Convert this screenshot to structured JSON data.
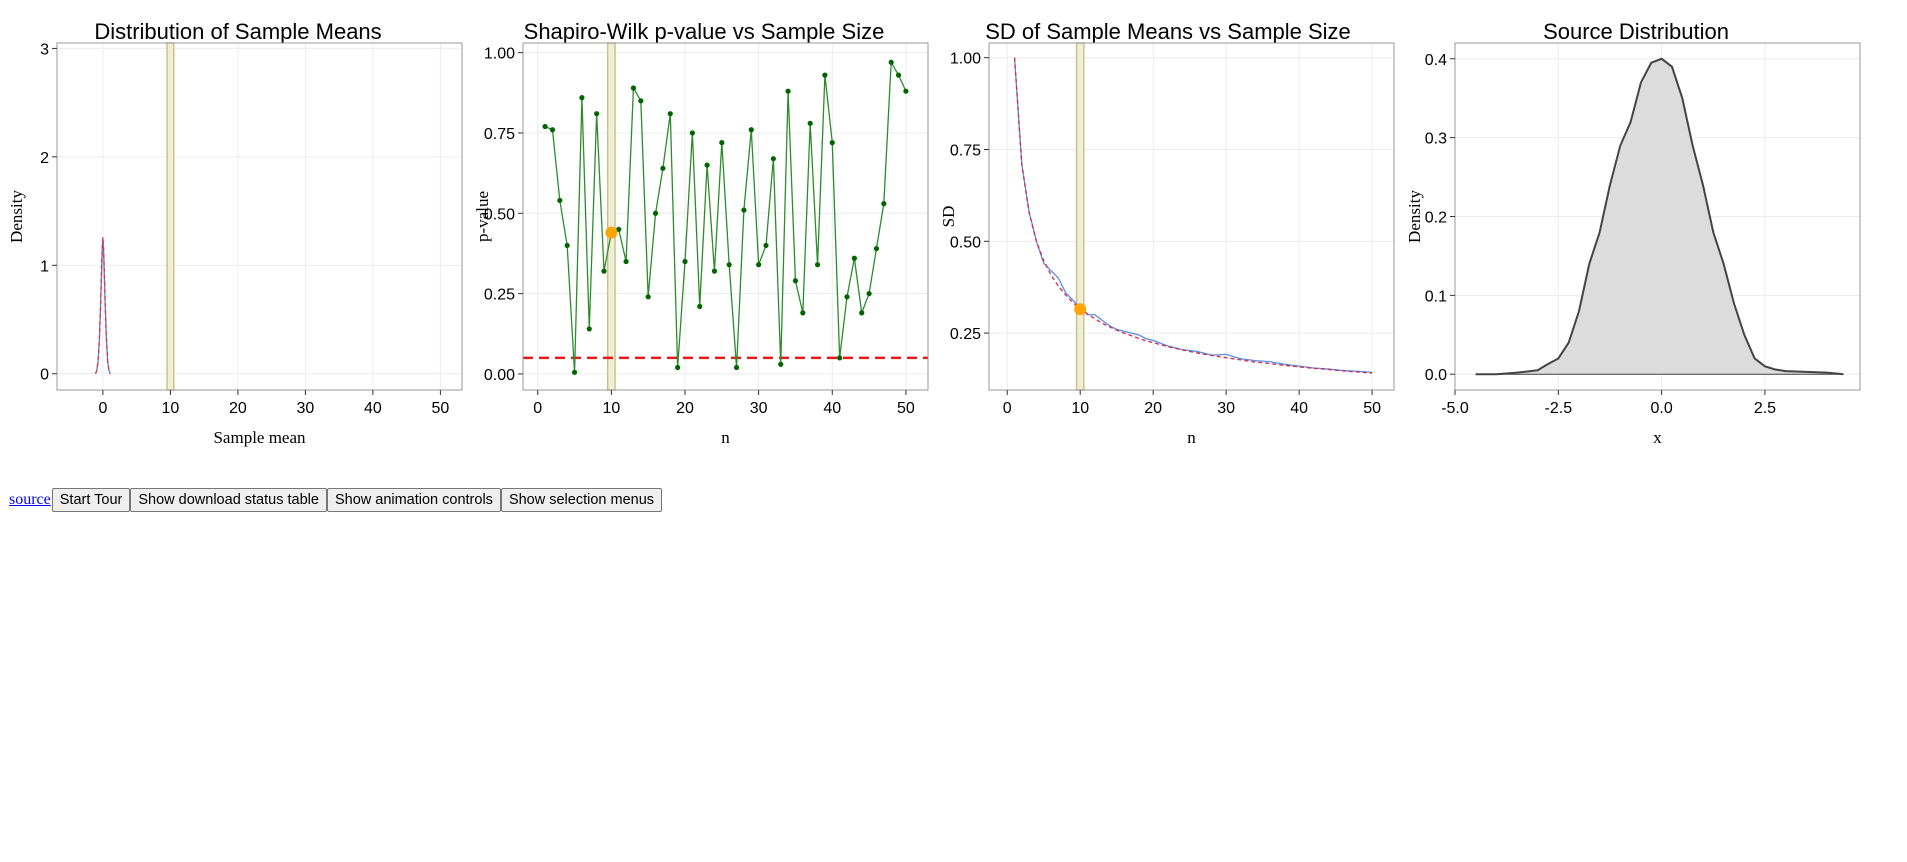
{
  "colors": {
    "panel_border": "#999999",
    "grid": "#ececec",
    "selection_band_fill": "#f2eed6",
    "selection_band_stroke": "#c9c28f",
    "density_empirical": "#4f81d9",
    "density_theoretical": "#e0344c",
    "pvalue_line": "#2e8b2e",
    "pvalue_point": "#006400",
    "threshold_line": "#e41a1c",
    "selected_point": "#ffa500",
    "sd_empirical": "#5a8ee6",
    "sd_theoretical": "#d12b4d",
    "source_fill": "#dcdcdc",
    "source_line": "#444444"
  },
  "selected_n": 10,
  "chart_data": [
    {
      "id": "means",
      "type": "line",
      "title": "Distribution of Sample Means",
      "xlabel": "Sample mean",
      "ylabel": "Density",
      "xlim": [
        -6.8,
        53.2
      ],
      "ylim": [
        -0.15,
        3.05
      ],
      "xticks": [
        0,
        10,
        20,
        30,
        40,
        50
      ],
      "yticks": [
        0,
        1,
        2,
        3
      ],
      "grid": true,
      "selection_band": [
        9.5,
        10.5
      ],
      "series": [
        {
          "style": "solid",
          "x": [
            -1.1,
            -0.9,
            -0.7,
            -0.5,
            -0.35,
            -0.2,
            -0.1,
            0,
            0.1,
            0.2,
            0.35,
            0.5,
            0.7,
            0.9,
            1.1
          ],
          "y": [
            0.0,
            0.03,
            0.12,
            0.35,
            0.62,
            0.95,
            1.15,
            1.24,
            1.15,
            0.95,
            0.62,
            0.35,
            0.12,
            0.03,
            0.0
          ]
        },
        {
          "style": "dashed",
          "x": [
            -1.1,
            -0.9,
            -0.7,
            -0.5,
            -0.35,
            -0.2,
            -0.1,
            0,
            0.1,
            0.2,
            0.35,
            0.5,
            0.7,
            0.9,
            1.1
          ],
          "y": [
            0.0,
            0.03,
            0.12,
            0.35,
            0.62,
            0.95,
            1.15,
            1.26,
            1.15,
            0.95,
            0.62,
            0.35,
            0.12,
            0.03,
            0.0
          ]
        }
      ]
    },
    {
      "id": "shapiro",
      "type": "line",
      "title": "Shapiro-Wilk p-value vs Sample Size",
      "xlabel": "n",
      "ylabel": "p-value",
      "xlim": [
        -2,
        53
      ],
      "ylim": [
        -0.05,
        1.03
      ],
      "xticks": [
        0,
        10,
        20,
        30,
        40,
        50
      ],
      "yticks": [
        0.0,
        0.25,
        0.5,
        0.75,
        1.0
      ],
      "ytick_labels": [
        "0.00",
        "0.25",
        "0.50",
        "0.75",
        "1.00"
      ],
      "grid": true,
      "selection_band": [
        9.5,
        10.5
      ],
      "threshold": 0.05,
      "selected_point": {
        "x": 10,
        "y": 0.44
      },
      "series": [
        {
          "style": "line-points",
          "x": [
            1,
            2,
            3,
            4,
            5,
            6,
            7,
            8,
            9,
            10,
            11,
            12,
            13,
            14,
            15,
            16,
            17,
            18,
            19,
            20,
            21,
            22,
            23,
            24,
            25,
            26,
            27,
            28,
            29,
            30,
            31,
            32,
            33,
            34,
            35,
            36,
            37,
            38,
            39,
            40,
            41,
            42,
            43,
            44,
            45,
            46,
            47,
            48,
            49,
            50
          ],
          "y": [
            0.77,
            0.76,
            0.54,
            0.4,
            0.005,
            0.86,
            0.14,
            0.81,
            0.32,
            0.44,
            0.45,
            0.35,
            0.89,
            0.85,
            0.24,
            0.5,
            0.64,
            0.81,
            0.02,
            0.35,
            0.75,
            0.21,
            0.65,
            0.32,
            0.72,
            0.34,
            0.02,
            0.51,
            0.76,
            0.34,
            0.4,
            0.67,
            0.03,
            0.88,
            0.29,
            0.19,
            0.78,
            0.34,
            0.93,
            0.72,
            0.05,
            0.24,
            0.36,
            0.19,
            0.25,
            0.39,
            0.53,
            0.97,
            0.93,
            0.88
          ]
        }
      ]
    },
    {
      "id": "sd",
      "type": "line",
      "title": "SD of Sample Means vs Sample Size",
      "xlabel": "n",
      "ylabel": "SD",
      "xlim": [
        -2.5,
        53
      ],
      "ylim": [
        0.095,
        1.04
      ],
      "xticks": [
        0,
        10,
        20,
        30,
        40,
        50
      ],
      "yticks": [
        0.25,
        0.5,
        0.75,
        1.0
      ],
      "ytick_labels": [
        "0.25",
        "0.50",
        "0.75",
        "1.00"
      ],
      "grid": true,
      "selection_band": [
        9.5,
        10.5
      ],
      "selected_point": {
        "x": 10,
        "y": 0.315
      },
      "series": [
        {
          "style": "solid",
          "x": [
            1,
            2,
            3,
            4,
            5,
            6,
            7,
            8,
            9,
            10,
            11,
            12,
            13,
            14,
            15,
            16,
            17,
            18,
            19,
            20,
            22,
            24,
            26,
            28,
            30,
            32,
            34,
            36,
            38,
            40,
            42,
            44,
            46,
            48,
            50
          ],
          "y": [
            1.0,
            0.71,
            0.58,
            0.5,
            0.44,
            0.42,
            0.4,
            0.36,
            0.34,
            0.32,
            0.3,
            0.3,
            0.285,
            0.27,
            0.26,
            0.255,
            0.25,
            0.245,
            0.235,
            0.23,
            0.215,
            0.205,
            0.2,
            0.19,
            0.192,
            0.18,
            0.175,
            0.172,
            0.165,
            0.16,
            0.155,
            0.152,
            0.148,
            0.146,
            0.143
          ]
        },
        {
          "style": "dashed",
          "x": [
            1,
            2,
            3,
            4,
            5,
            6,
            7,
            8,
            9,
            10,
            11,
            12,
            13,
            14,
            15,
            16,
            17,
            18,
            19,
            20,
            22,
            24,
            26,
            28,
            30,
            32,
            34,
            36,
            38,
            40,
            42,
            44,
            46,
            48,
            50
          ],
          "y": [
            1.0,
            0.707,
            0.577,
            0.5,
            0.447,
            0.408,
            0.378,
            0.354,
            0.333,
            0.316,
            0.302,
            0.289,
            0.277,
            0.267,
            0.258,
            0.25,
            0.243,
            0.236,
            0.229,
            0.224,
            0.213,
            0.204,
            0.196,
            0.189,
            0.183,
            0.177,
            0.171,
            0.167,
            0.162,
            0.158,
            0.154,
            0.151,
            0.147,
            0.144,
            0.141
          ]
        }
      ]
    },
    {
      "id": "source",
      "type": "area",
      "title": "Source Distribution",
      "xlabel": "x",
      "ylabel": "Density",
      "xlim": [
        -5.0,
        4.8
      ],
      "ylim": [
        -0.02,
        0.42
      ],
      "xticks": [
        -5.0,
        -2.5,
        0.0,
        2.5
      ],
      "xtick_labels": [
        "-5.0",
        "-2.5",
        "0.0",
        "2.5"
      ],
      "yticks": [
        0.0,
        0.1,
        0.2,
        0.3,
        0.4
      ],
      "ytick_labels": [
        "0.0",
        "0.1",
        "0.2",
        "0.3",
        "0.4"
      ],
      "grid": true,
      "series": [
        {
          "style": "area",
          "x": [
            -4.5,
            -4.0,
            -3.5,
            -3.0,
            -2.75,
            -2.5,
            -2.25,
            -2.0,
            -1.75,
            -1.5,
            -1.25,
            -1.0,
            -0.75,
            -0.5,
            -0.25,
            0.0,
            0.25,
            0.5,
            0.75,
            1.0,
            1.25,
            1.5,
            1.75,
            2.0,
            2.25,
            2.5,
            2.75,
            3.0,
            3.5,
            4.0,
            4.4
          ],
          "y": [
            0.0,
            0.0,
            0.002,
            0.005,
            0.013,
            0.02,
            0.04,
            0.08,
            0.14,
            0.18,
            0.24,
            0.29,
            0.32,
            0.37,
            0.395,
            0.4,
            0.39,
            0.35,
            0.29,
            0.24,
            0.18,
            0.14,
            0.09,
            0.05,
            0.02,
            0.01,
            0.006,
            0.004,
            0.003,
            0.002,
            0.0
          ]
        }
      ]
    }
  ],
  "controls": {
    "source_link": "source",
    "start_tour": "Start Tour",
    "download_status": "Show download status table",
    "animation_controls": "Show animation controls",
    "selection_menus": "Show selection menus"
  }
}
